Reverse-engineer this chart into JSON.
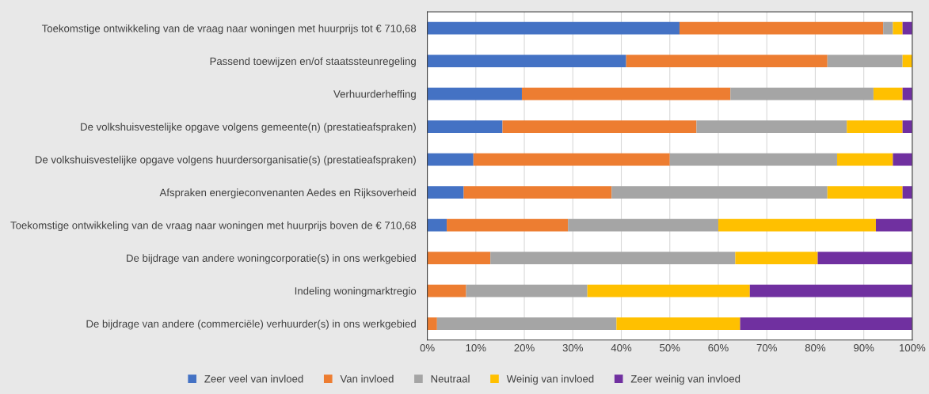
{
  "chart_data": {
    "type": "bar",
    "orientation": "horizontal",
    "stacked": true,
    "categories": [
      "Toekomstige ontwikkeling van de vraag naar woningen met huurprijs tot € 710,68",
      "Passend toewijzen en/of staatssteunregeling",
      "Verhuurderheffing",
      "De volkshuisvestelijke opgave volgens gemeente(n) (prestatieafspraken)",
      "De volkshuisvestelijke opgave volgens huurdersorganisatie(s) (prestatieafspraken)",
      "Afspraken energieconvenanten Aedes en Rijksoverheid",
      "Toekomstige ontwikkeling van de vraag naar woningen met huurprijs boven de € 710,68",
      "De bijdrage van andere woningcorporatie(s) in ons werkgebied",
      "Indeling woningmarktregio",
      "De bijdrage van andere (commerciële) verhuurder(s) in ons werkgebied"
    ],
    "series": [
      {
        "name": "Zeer veel van invloed",
        "color": "#4472c4",
        "values": [
          52,
          41,
          19.5,
          15.5,
          9.5,
          7.5,
          4,
          0,
          0,
          0
        ]
      },
      {
        "name": "Van invloed",
        "color": "#ed7d31",
        "values": [
          42,
          41.5,
          43,
          40,
          40.5,
          30.5,
          25,
          13,
          8,
          2
        ]
      },
      {
        "name": "Neutraal",
        "color": "#a5a5a5",
        "values": [
          2,
          15.5,
          29.5,
          31,
          34.5,
          44.5,
          31,
          50.5,
          25,
          37
        ]
      },
      {
        "name": "Weinig van invloed",
        "color": "#ffc000",
        "values": [
          2,
          2,
          6,
          11.5,
          11.5,
          15.5,
          32.5,
          17,
          33.5,
          25.5
        ]
      },
      {
        "name": "Zeer weinig van invloed",
        "color": "#7030a0",
        "values": [
          2,
          0,
          2,
          2,
          4,
          2,
          7.5,
          19.5,
          33.5,
          35.5
        ]
      }
    ],
    "xlim": [
      0,
      100
    ],
    "xticks": [
      {
        "value": 0,
        "label": "0%"
      },
      {
        "value": 10,
        "label": "10%"
      },
      {
        "value": 20,
        "label": "20%"
      },
      {
        "value": 30,
        "label": "30%"
      },
      {
        "value": 40,
        "label": "40%"
      },
      {
        "value": 50,
        "label": "50%"
      },
      {
        "value": 60,
        "label": "60%"
      },
      {
        "value": 70,
        "label": "70%"
      },
      {
        "value": 80,
        "label": "80%"
      },
      {
        "value": 90,
        "label": "90%"
      },
      {
        "value": 100,
        "label": "100%"
      }
    ],
    "grid": "x",
    "legend": "bottom"
  }
}
